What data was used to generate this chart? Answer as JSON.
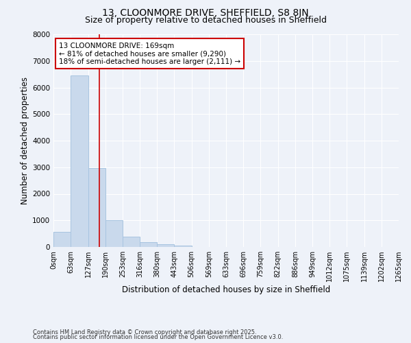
{
  "title_line1": "13, CLOONMORE DRIVE, SHEFFIELD, S8 8JN",
  "title_line2": "Size of property relative to detached houses in Sheffield",
  "xlabel": "Distribution of detached houses by size in Sheffield",
  "ylabel": "Number of detached properties",
  "bar_color": "#c9d9ec",
  "bar_edge_color": "#a8c4e0",
  "bin_labels": [
    "0sqm",
    "63sqm",
    "127sqm",
    "190sqm",
    "253sqm",
    "316sqm",
    "380sqm",
    "443sqm",
    "506sqm",
    "569sqm",
    "633sqm",
    "696sqm",
    "759sqm",
    "822sqm",
    "886sqm",
    "949sqm",
    "1012sqm",
    "1075sqm",
    "1139sqm",
    "1202sqm",
    "1265sqm"
  ],
  "bar_values": [
    560,
    6450,
    2980,
    1000,
    380,
    175,
    95,
    60,
    0,
    0,
    0,
    0,
    0,
    0,
    0,
    0,
    0,
    0,
    0,
    0
  ],
  "bin_edges": [
    0,
    63,
    127,
    190,
    253,
    316,
    380,
    443,
    506,
    569,
    633,
    696,
    759,
    822,
    886,
    949,
    1012,
    1075,
    1139,
    1202,
    1265
  ],
  "ylim": [
    0,
    8000
  ],
  "yticks": [
    0,
    1000,
    2000,
    3000,
    4000,
    5000,
    6000,
    7000,
    8000
  ],
  "property_size": 169,
  "vline_color": "#cc0000",
  "annotation_text": "13 CLOONMORE DRIVE: 169sqm\n← 81% of detached houses are smaller (9,290)\n18% of semi-detached houses are larger (2,111) →",
  "annotation_box_color": "#ffffff",
  "annotation_border_color": "#cc0000",
  "footer_line1": "Contains HM Land Registry data © Crown copyright and database right 2025.",
  "footer_line2": "Contains public sector information licensed under the Open Government Licence v3.0.",
  "background_color": "#eef2f9",
  "grid_color": "#ffffff",
  "title_fontsize": 10,
  "subtitle_fontsize": 9,
  "tick_fontsize": 7,
  "label_fontsize": 8.5,
  "footer_fontsize": 6,
  "annotation_fontsize": 7.5
}
